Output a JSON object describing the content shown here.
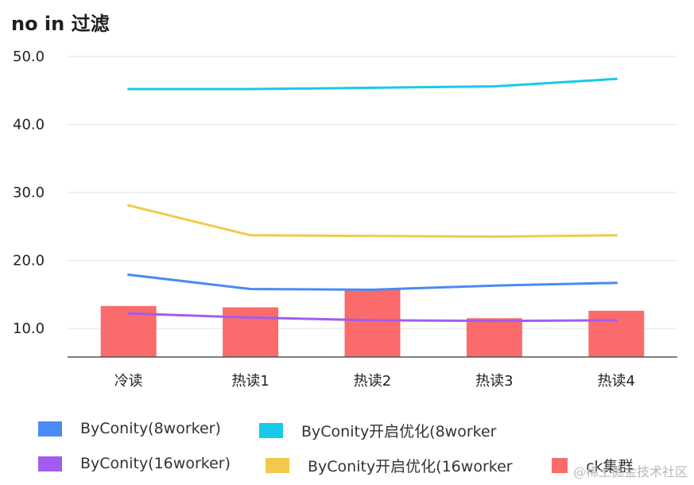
{
  "chart_data": {
    "type": "line",
    "title": "no in 过滤",
    "categories": [
      "冷读",
      "热读1",
      "热读2",
      "热读3",
      "热读4"
    ],
    "yticks": [
      "50.0",
      "40.0",
      "30.0",
      "20.0",
      "10.0"
    ],
    "ylim": [
      5.8,
      50.0
    ],
    "grid": true,
    "legend_position": "bottom",
    "series": [
      {
        "name": "ByConity(8worker)",
        "kind": "line",
        "color": "#4a8af4",
        "values": [
          17.9,
          15.8,
          15.7,
          16.3,
          16.7
        ]
      },
      {
        "name": "ByConity开启优化(8worker",
        "kind": "line",
        "color": "#19c9ea",
        "values": [
          45.2,
          45.2,
          45.4,
          45.6,
          46.7
        ]
      },
      {
        "name": "ByConity(16worker)",
        "kind": "line",
        "color": "#a25cf0",
        "values": [
          12.2,
          11.6,
          11.2,
          11.1,
          11.2
        ]
      },
      {
        "name": "ByConity开启优化(16worker",
        "kind": "line",
        "color": "#f2c94c",
        "values": [
          28.1,
          23.7,
          23.6,
          23.5,
          23.7
        ]
      },
      {
        "name": "ck集群",
        "kind": "bar",
        "color": "#fb6b6b",
        "values": [
          13.3,
          13.1,
          15.7,
          11.5,
          12.6
        ]
      }
    ]
  },
  "watermark": "@稀土掘金技术社区"
}
